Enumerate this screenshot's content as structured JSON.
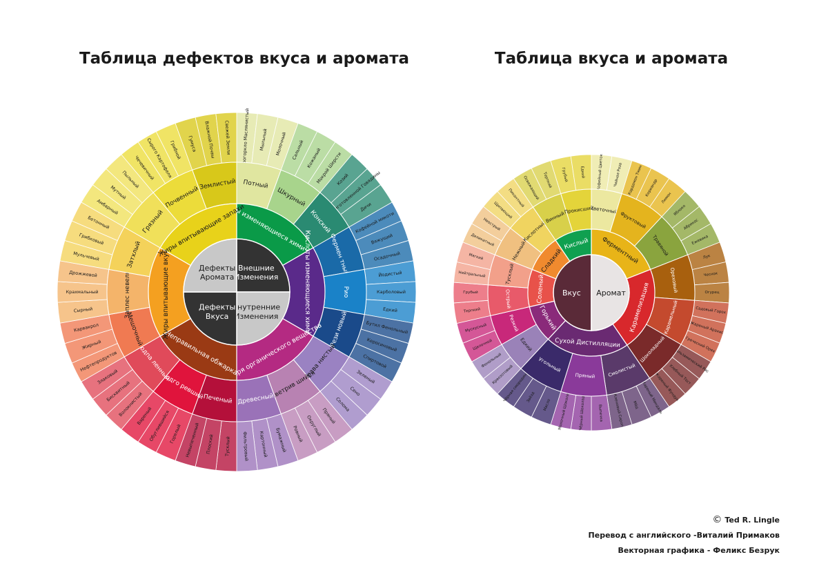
{
  "titles": {
    "left": "Таблица дефектов вкуса и аромата",
    "right": "Таблица вкуса и аромата"
  },
  "credits": {
    "copyright_symbol": "©",
    "author": "Ted R. Lingle",
    "translation": "Перевод с английского -Виталий Примаков",
    "graphics": "Векторная графика - Феликс Безрук"
  },
  "defects_wheel": {
    "center": [
      {
        "label": "Внешние Изменения",
        "color": "#333333"
      },
      {
        "label": "Внутренние Изменения",
        "color": "#c8c8c8"
      },
      {
        "label": "Дефекты Вкуса",
        "color": "#333333"
      },
      {
        "label": "Дефекты Аромата",
        "color": "#c8c8c8"
      }
    ],
    "groups": [
      {
        "label": "Жиры изменяющиеся химически",
        "color": "#0a9a48",
        "subs": [
          {
            "label": "Потный",
            "color": "#e0e6a0",
            "leaves": [
              "Прогоркло Маслянистый",
              "Мыльный",
              "Молочный"
            ]
          },
          {
            "label": "Шкурный",
            "color": "#a8d48c",
            "leaves": [
              "Сальный",
              "Кожаный",
              "Мокрой Шерсти"
            ]
          },
          {
            "label": "Конский",
            "color": "#2a8a72",
            "leaves": [
              "Козий",
              "Приготовленной Говядины",
              "Дичи"
            ]
          }
        ]
      },
      {
        "label": "Кислоты изменяющиеся химически",
        "color": "#5a2a8a",
        "subs": [
          {
            "label": "Фермен тный",
            "color": "#1a6aa8",
            "leaves": [
              "Кофейной мякоти",
              "Вяжущий",
              "Осадочный"
            ]
          },
          {
            "label": "Рио",
            "color": "#1a82c8",
            "leaves": [
              "Йодистый",
              "Карболовый",
              "Едкий"
            ]
          },
          {
            "label": "Рези новый",
            "color": "#1a4a8a",
            "leaves": [
              "Бутил Фенольный",
              "Керосиновый",
              "Спиртовой"
            ]
          }
        ]
      },
      {
        "label": "Потеря органического вещества",
        "color": "#b42a82",
        "subs": [
          {
            "label": "Трава нистый",
            "color": "#9a82c2",
            "leaves": [
              "Зеленый",
              "Сено",
              "Солома"
            ]
          },
          {
            "label": "Выветрив шийся",
            "color": "#b882b2",
            "leaves": [
              "Пряный",
              "Округлый",
              "Ровный"
            ]
          },
          {
            "label": "Древесный",
            "color": "#9a72b8",
            "leaves": [
              "Бумажный",
              "Картонный",
              "Фильтровый"
            ]
          }
        ]
      },
      {
        "label": "Неправильная обжарка",
        "color": "#9a3a14",
        "subs": [
          {
            "label": "Печеный",
            "color": "#b4103a",
            "leaves": [
              "Тусклый",
              "Плоский",
              "Невыпеченный"
            ]
          },
          {
            "label": "Подго ревший",
            "color": "#e0143c",
            "leaves": [
              "Горелый",
              "Обуглившийся",
              "Вареный"
            ]
          },
          {
            "label": "Подпа ленный",
            "color": "#e04a5a",
            "leaves": [
              "Волокнистый",
              "Бисквитный",
              "Злаковый"
            ]
          }
        ]
      },
      {
        "label": "Жиры впитывающие вкусы",
        "color": "#f4a020",
        "subs": [
          {
            "label": "Мешочный",
            "color": "#f07a52",
            "leaves": [
              "Нефтепродуктов",
              "Жирный",
              "Карвакрол"
            ]
          },
          {
            "label": "Заплес невелый",
            "color": "#f4b46a",
            "leaves": [
              "Сырный",
              "Крахмальный",
              "Дрожжевой"
            ]
          },
          {
            "label": "Затхлый",
            "color": "#f4d25a",
            "leaves": [
              "Мульчевый",
              "Грибковый",
              "Бетонный"
            ]
          }
        ]
      },
      {
        "label": "Жиры впитывающие запахи",
        "color": "#e8d21a",
        "subs": [
          {
            "label": "Грязный",
            "color": "#f0e05a",
            "leaves": [
              "Амбарный",
              "Мутный",
              "Пыльный"
            ]
          },
          {
            "label": "Почвенный",
            "color": "#ecdc3a",
            "leaves": [
              "Чечевичный",
              "Сырого Картофеля",
              "Грибной"
            ]
          },
          {
            "label": "Землистый",
            "color": "#d8c81a",
            "leaves": [
              "Гумуса",
              "Влажной Почвы",
              "Свежей Земли"
            ]
          }
        ]
      }
    ]
  },
  "flavor_wheel": {
    "center": [
      {
        "label": "Вкус",
        "color": "#5a2a38"
      },
      {
        "label": "Аромат",
        "color": "#e8e4e4"
      }
    ],
    "groups": [
      {
        "label": "Ферментный",
        "color": "#e8b418",
        "subs": [
          {
            "label": "Цветочный",
            "color": "#ece8a0",
            "leaves": [
              "Кофейный Цветок",
              "Чайная Роза"
            ]
          },
          {
            "label": "Фруктовый",
            "color": "#e4b41e",
            "leaves": [
              "Кардамон Тмин",
              "Кориандр",
              "Лимон"
            ]
          },
          {
            "label": "Травяной",
            "color": "#8aa43e",
            "leaves": [
              "Яблоко",
              "Абрикос",
              "Ежевика"
            ]
          }
        ]
      },
      {
        "label": "Карамелизация",
        "color": "#d8282c",
        "subs": [
          {
            "label": "Ореховый",
            "color": "#a8600e",
            "leaves": [
              "Лук",
              "Чеснок",
              "Огурец"
            ]
          },
          {
            "label": "Карамельный",
            "color": "#c44a2e",
            "leaves": [
              "Садовый Горох",
              "Жареный Арахис",
              "Греческий Орех"
            ]
          },
          {
            "label": "Шоколадный",
            "color": "#7a2a2a",
            "leaves": [
              "Бальзамический Рис",
              "Хлебный Тост",
              "Жареный Фундук"
            ]
          }
        ]
      },
      {
        "label": "Сухой Дистилляции",
        "color": "#6a2a72",
        "subs": [
          {
            "label": "Смолистый",
            "color": "#5a3a6a",
            "leaves": [
              "Жареный Миндаль",
              "Мёд",
              "Кленовый Сироп"
            ]
          },
          {
            "label": "Пряный",
            "color": "#8a3a9a",
            "leaves": [
              "Выпечка",
              "Чёрный Шоколад",
              "Молочный Шоколад"
            ]
          },
          {
            "label": "Угольный",
            "color": "#3a2a6a",
            "leaves": [
              "Масло",
              "Звёзд",
              "Чёрная смородина"
            ]
          }
        ]
      },
      {
        "label": "Горький",
        "color": "#8a2a7a",
        "subs": [
          {
            "label": "Едкий",
            "color": "#9a82b8",
            "leaves": [
              "Креозотовый",
              "Фенольный"
            ]
          },
          {
            "label": "Резкий",
            "color": "#c8287a",
            "leaves": [
              "Щелочной",
              "Мускусный"
            ]
          }
        ]
      },
      {
        "label": "Соленый",
        "color": "#e8524a",
        "subs": [
          {
            "label": "Острый",
            "color": "#e85a6a",
            "leaves": [
              "Терпкий",
              "Грубый"
            ]
          },
          {
            "label": "Тусклый",
            "color": "#f2a08a",
            "leaves": [
              "Нейтральный",
              "Мягкий"
            ]
          }
        ]
      },
      {
        "label": "Сладкий",
        "color": "#f08a2e",
        "subs": [
          {
            "label": "Нежный",
            "color": "#f0c080",
            "leaves": [
              "Деликатный",
              "Неострый"
            ]
          },
          {
            "label": "Кислотный",
            "color": "#f0d460",
            "leaves": [
              "Щипающий",
              "Пикантный"
            ]
          }
        ]
      },
      {
        "label": "Кислый",
        "color": "#10a050",
        "subs": [
          {
            "label": "Винный",
            "color": "#d8d04a",
            "leaves": [
              "Освежающий",
              "Терпкий"
            ]
          },
          {
            "label": "Прокисший",
            "color": "#e4d43a",
            "leaves": [
              "Грубый",
              "Едкий"
            ]
          }
        ]
      }
    ]
  }
}
